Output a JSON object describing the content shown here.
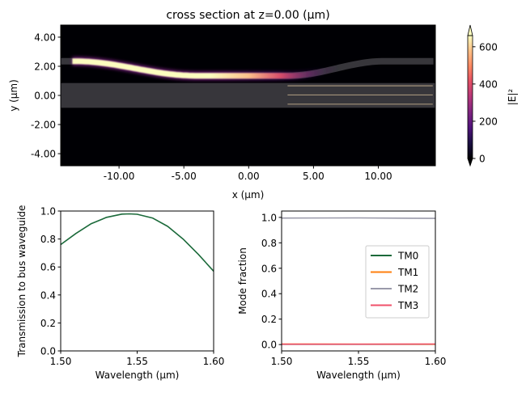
{
  "chart_data": [
    {
      "type": "heatmap",
      "title": "cross section at z=0.00 (µm)",
      "xlabel": "x (µm)",
      "ylabel": "y (µm)",
      "xlim": [
        -14.5,
        14.4
      ],
      "ylim": [
        -4.83,
        4.83
      ],
      "xticks": [
        -10,
        -5,
        0,
        5,
        10
      ],
      "xtick_labels": [
        "-10.00",
        "-5.00",
        "0.00",
        "5.00",
        "10.00"
      ],
      "yticks": [
        4,
        2,
        0,
        -2,
        -4
      ],
      "ytick_labels": [
        "4.00",
        "2.00",
        "0.00",
        "-2.00",
        "-4.00"
      ],
      "colormap": "magma",
      "colorbar": {
        "label": "|E|²",
        "range": [
          0,
          660
        ],
        "ticks": [
          0,
          200,
          400,
          600
        ],
        "tick_labels": [
          "0",
          "200",
          "400",
          "600"
        ],
        "extend": "both"
      }
    },
    {
      "type": "line",
      "xlabel": "Wavelength (μm)",
      "ylabel": "Transmission to bus waveguide",
      "xlim": [
        1.5,
        1.6
      ],
      "ylim": [
        0,
        1
      ],
      "xticks": [
        1.5,
        1.55,
        1.6
      ],
      "xtick_labels": [
        "1.50",
        "1.55",
        "1.60"
      ],
      "yticks": [
        0,
        0.2,
        0.4,
        0.6,
        0.8,
        1.0
      ],
      "ytick_labels": [
        "0.0",
        "0.2",
        "0.4",
        "0.6",
        "0.8",
        "1.0"
      ],
      "series": [
        {
          "color": "#1b6a3a",
          "x": [
            1.5,
            1.51,
            1.52,
            1.53,
            1.54,
            1.545,
            1.55,
            1.56,
            1.57,
            1.58,
            1.59,
            1.6
          ],
          "y": [
            0.76,
            0.84,
            0.91,
            0.955,
            0.978,
            0.98,
            0.977,
            0.95,
            0.89,
            0.8,
            0.69,
            0.57
          ]
        }
      ]
    },
    {
      "type": "line",
      "xlabel": "Wavelength (μm)",
      "ylabel": "Mode fraction",
      "xlim": [
        1.5,
        1.6
      ],
      "ylim": [
        -0.05,
        1.05
      ],
      "xticks": [
        1.5,
        1.55,
        1.6
      ],
      "xtick_labels": [
        "1.50",
        "1.55",
        "1.60"
      ],
      "yticks": [
        0,
        0.2,
        0.4,
        0.6,
        0.8,
        1.0
      ],
      "ytick_labels": [
        "0.0",
        "0.2",
        "0.4",
        "0.6",
        "0.8",
        "1.0"
      ],
      "legend": "center-right",
      "series": [
        {
          "name": "TM0",
          "color": "#1b6a3a",
          "x": [
            1.5,
            1.55,
            1.6
          ],
          "y": [
            0.002,
            0.002,
            0.002
          ]
        },
        {
          "name": "TM1",
          "color": "#ff7f0e",
          "x": [
            1.5,
            1.55,
            1.6
          ],
          "y": [
            0.004,
            0.003,
            0.003
          ]
        },
        {
          "name": "TM2",
          "color": "#9a9aaa",
          "x": [
            1.5,
            1.55,
            1.6
          ],
          "y": [
            0.995,
            0.996,
            0.992
          ]
        },
        {
          "name": "TM3",
          "color": "#f0506a",
          "x": [
            1.5,
            1.55,
            1.6
          ],
          "y": [
            0.003,
            0.003,
            0.004
          ]
        }
      ]
    }
  ]
}
